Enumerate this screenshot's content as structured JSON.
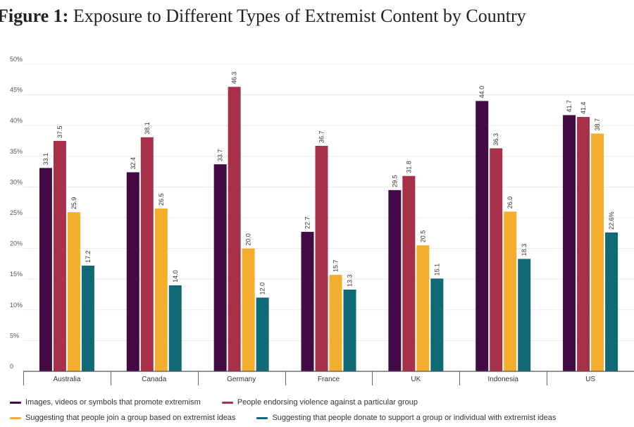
{
  "title": {
    "prefix": "Figure 1:",
    "text": " Exposure to Different Types of Extremist Content by Country"
  },
  "chart_data": {
    "type": "bar",
    "title": "Figure 1: Exposure to Different Types of Extremist Content by Country",
    "xlabel": "",
    "ylabel": "",
    "ylim": [
      0,
      50
    ],
    "yticks": [
      0,
      5,
      10,
      15,
      20,
      25,
      30,
      35,
      40,
      45,
      50
    ],
    "ytick_labels": [
      "0",
      "5%",
      "10%",
      "15%",
      "20%",
      "25%",
      "30%",
      "35%",
      "40%",
      "45%",
      "50%"
    ],
    "grid": true,
    "legend_position": "bottom",
    "categories": [
      "Australia",
      "Canada",
      "Germany",
      "France",
      "UK",
      "Indonesia",
      "US"
    ],
    "series": [
      {
        "name": "Images, videos or symbols that promote extremism",
        "color": "#440a45",
        "values": [
          33.1,
          32.4,
          33.7,
          22.7,
          29.5,
          44.0,
          41.7
        ],
        "labels": [
          "33.1",
          "32.4",
          "33.7",
          "22.7",
          "29.5",
          "44.0",
          "41.7"
        ]
      },
      {
        "name": "People endorsing violence against a particular  group",
        "color": "#a8314a",
        "values": [
          37.5,
          38.1,
          46.3,
          36.7,
          31.8,
          36.3,
          41.4
        ],
        "labels": [
          "37.5",
          "38.1",
          "46.3",
          "36.7",
          "31.8",
          "36.3",
          "41.4"
        ]
      },
      {
        "name": "Suggesting that people join a group based on extremist ideas",
        "color": "#f5ad2e",
        "values": [
          25.9,
          26.5,
          20.0,
          15.7,
          20.5,
          26.0,
          38.7
        ],
        "labels": [
          "25.9",
          "26.5",
          "20.0",
          "15.7",
          "20.5",
          "26.0",
          "38.7"
        ]
      },
      {
        "name": "Suggesting that people donate to support a group or individual with extremist ideas",
        "color": "#0f6a75",
        "values": [
          17.2,
          14.0,
          12.0,
          13.3,
          15.1,
          18.3,
          22.6
        ],
        "labels": [
          "17.2",
          "14.0",
          "12.0",
          "13.3",
          "15.1",
          "18.3",
          "22.6%"
        ]
      }
    ]
  }
}
